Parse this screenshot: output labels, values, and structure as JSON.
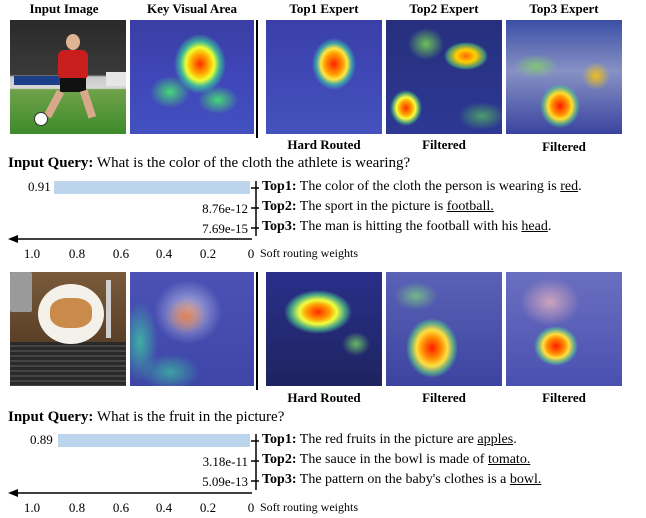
{
  "headers": {
    "input_image": "Input  Image",
    "key_visual_area": "Key Visual Area",
    "top1": "Top1 Expert",
    "top2": "Top2 Expert",
    "top3": "Top3 Expert"
  },
  "axis": {
    "ticks": [
      "1.0",
      "0.8",
      "0.6",
      "0.4",
      "0.2",
      "0"
    ],
    "label": "Soft routing weights"
  },
  "examples": [
    {
      "captions": [
        "Hard Routed",
        "Filtered",
        "Filtered"
      ],
      "query_label": "Input Query:",
      "query_text": "What is the color of the cloth the athlete is wearing?",
      "weights": [
        "0.91",
        "8.76e-12",
        "7.69e-15"
      ],
      "answers": [
        {
          "label": "Top1:",
          "pre": "The color of the cloth the person is wearing is ",
          "key": "red",
          "post": "."
        },
        {
          "label": "Top2:",
          "pre": "The sport in the picture is ",
          "key": "football.",
          "post": ""
        },
        {
          "label": "Top3:",
          "pre": "The man is hitting the football with his ",
          "key": "head",
          "post": "."
        }
      ]
    },
    {
      "captions": [
        "Hard Routed",
        "Filtered",
        "Filtered"
      ],
      "query_label": "Input Query:",
      "query_text": "What is the fruit in the picture?",
      "weights": [
        "0.89",
        "3.18e-11",
        "5.09e-13"
      ],
      "answers": [
        {
          "label": "Top1:",
          "pre": "The red fruits in the picture are ",
          "key": "apples",
          "post": "."
        },
        {
          "label": "Top2:",
          "pre": "The sauce in the bowl is made of ",
          "key": "tomato.",
          "post": ""
        },
        {
          "label": "Top3:",
          "pre": "The pattern on the baby's clothes is a ",
          "key": "bowl.",
          "post": ""
        }
      ]
    }
  ],
  "chart_data": [
    {
      "type": "bar",
      "categories": [
        "Top1",
        "Top2",
        "Top3"
      ],
      "values": [
        0.91,
        8.76e-12,
        7.69e-15
      ],
      "xlabel": "Soft routing weights",
      "xlim": [
        1.0,
        0
      ]
    },
    {
      "type": "bar",
      "categories": [
        "Top1",
        "Top2",
        "Top3"
      ],
      "values": [
        0.89,
        3.18e-11,
        5.09e-13
      ],
      "xlabel": "Soft routing weights",
      "xlim": [
        1.0,
        0
      ]
    }
  ]
}
